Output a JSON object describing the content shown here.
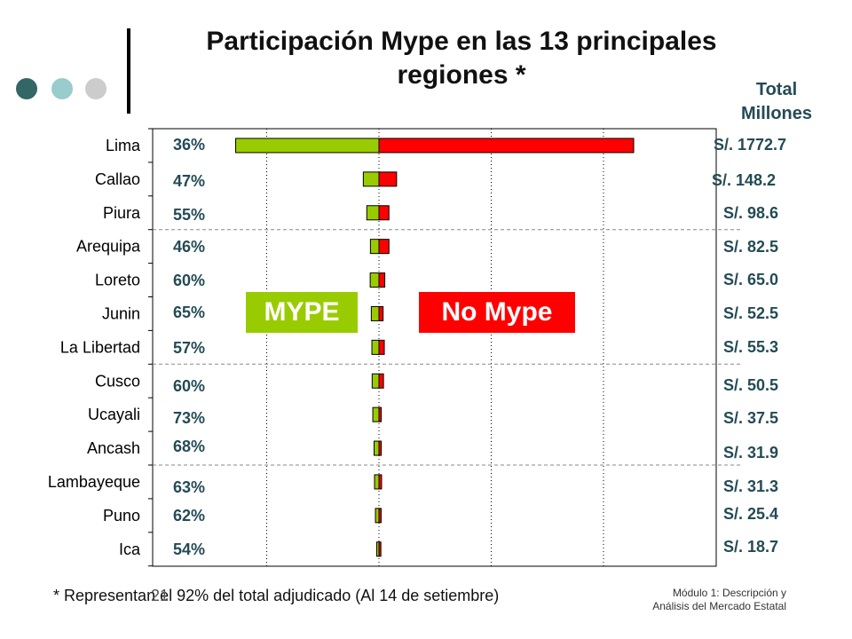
{
  "title_line1": "Participación Mype en las 13 principales",
  "title_line2": "regiones *",
  "total_header_line1": "Total",
  "total_header_line2": "Millones",
  "legend": {
    "mype_label": "MYPE",
    "no_mype_label": "No Mype"
  },
  "colors": {
    "mype": "#99cc00",
    "no_mype": "#ff0000",
    "pct_text": "#244b55",
    "dot1": "#336666",
    "dot2": "#99cccc",
    "dot3": "#cccccc"
  },
  "footnote": "* Representan el 92% del total adjudicado (Al 14 de setiembre)",
  "slide_number": "21",
  "module_line1": "Módulo 1: Descripción y",
  "module_line2": "Análisis del Mercado Estatal",
  "chart_data": {
    "type": "bar",
    "orientation": "horizontal-diverging",
    "categories": [
      "Lima",
      "Callao",
      "Piura",
      "Arequipa",
      "Loreto",
      "Junin",
      "La Libertad",
      "Cusco",
      "Ucayali",
      "Ancash",
      "Lambayeque",
      "Puno",
      "Ica"
    ],
    "series": [
      {
        "name": "MYPE",
        "values": [
          638.2,
          69.7,
          54.2,
          38.0,
          39.0,
          34.1,
          31.5,
          30.3,
          27.4,
          21.7,
          19.7,
          15.7,
          10.1
        ]
      },
      {
        "name": "No Mype",
        "values": [
          1134.5,
          78.5,
          44.4,
          44.5,
          26.0,
          18.4,
          23.8,
          20.2,
          10.1,
          10.2,
          11.6,
          9.7,
          8.6
        ]
      }
    ],
    "mype_share_labels": [
      "36%",
      "47%",
      "55%",
      "46%",
      "60%",
      "65%",
      "57%",
      "60%",
      "73%",
      "68%",
      "63%",
      "62%",
      "54%"
    ],
    "totals_labels": [
      "S/. 1772.7",
      "S/. 148.2",
      "S/. 98.6",
      "S/. 82.5",
      "S/. 65.0",
      "S/. 52.5",
      "S/. 55.3",
      "S/. 50.5",
      "S/. 37.5",
      "S/. 31.9",
      "S/. 31.3",
      "S/. 25.4",
      "S/. 18.7"
    ],
    "xlim": [
      -1300,
      1500
    ],
    "grid": true,
    "legend_placement": "center"
  }
}
